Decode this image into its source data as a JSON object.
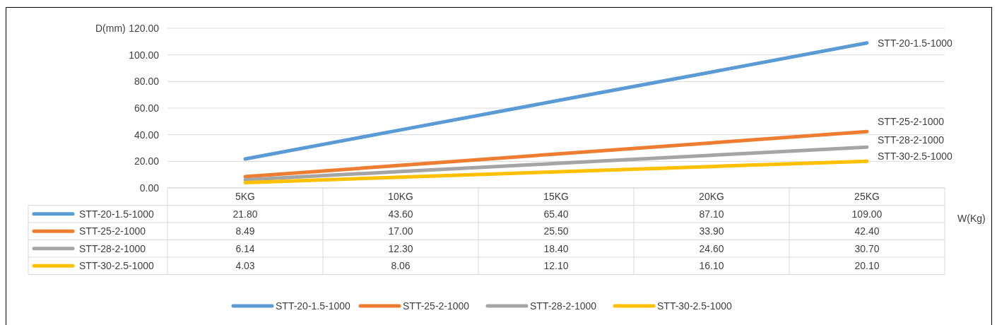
{
  "chart_data": {
    "type": "line",
    "ylabel": "D(mm)",
    "xlabel": "W(Kg)",
    "categories": [
      "5KG",
      "10KG",
      "15KG",
      "20KG",
      "25KG"
    ],
    "ylim": [
      0,
      120
    ],
    "yticks": [
      {
        "value": 0,
        "label": "0.00"
      },
      {
        "value": 20,
        "label": "20.00"
      },
      {
        "value": 40,
        "label": "40.00"
      },
      {
        "value": 60,
        "label": "60.00"
      },
      {
        "value": 80,
        "label": "80.00"
      },
      {
        "value": 100,
        "label": "100.00"
      },
      {
        "value": 120,
        "label": "120.00"
      }
    ],
    "grid": "y",
    "legend": "bottom",
    "marker": "none",
    "line_style": "solid",
    "series": [
      {
        "name": "STT-20-1.5-1000",
        "color": "#5b9bd5",
        "values": [
          21.8,
          43.6,
          65.4,
          87.1,
          109
        ],
        "value_labels": [
          "21.80",
          "43.60",
          "65.40",
          "87.10",
          "109.00"
        ]
      },
      {
        "name": "STT-25-2-1000",
        "color": "#ed7d31",
        "values": [
          8.49,
          17,
          25.5,
          33.9,
          42.4
        ],
        "value_labels": [
          "8.49",
          "17.00",
          "25.50",
          "33.90",
          "42.40"
        ]
      },
      {
        "name": "STT-28-2-1000",
        "color": "#a5a5a5",
        "values": [
          6.14,
          12.3,
          18.4,
          24.6,
          30.7
        ],
        "value_labels": [
          "6.14",
          "12.30",
          "18.40",
          "24.60",
          "30.70"
        ]
      },
      {
        "name": "STT-30-2.5-1000",
        "color": "#ffc000",
        "values": [
          4.03,
          8.06,
          12.1,
          16.1,
          20.1
        ],
        "value_labels": [
          "4.03",
          "8.06",
          "12.10",
          "16.10",
          "20.10"
        ]
      }
    ]
  }
}
